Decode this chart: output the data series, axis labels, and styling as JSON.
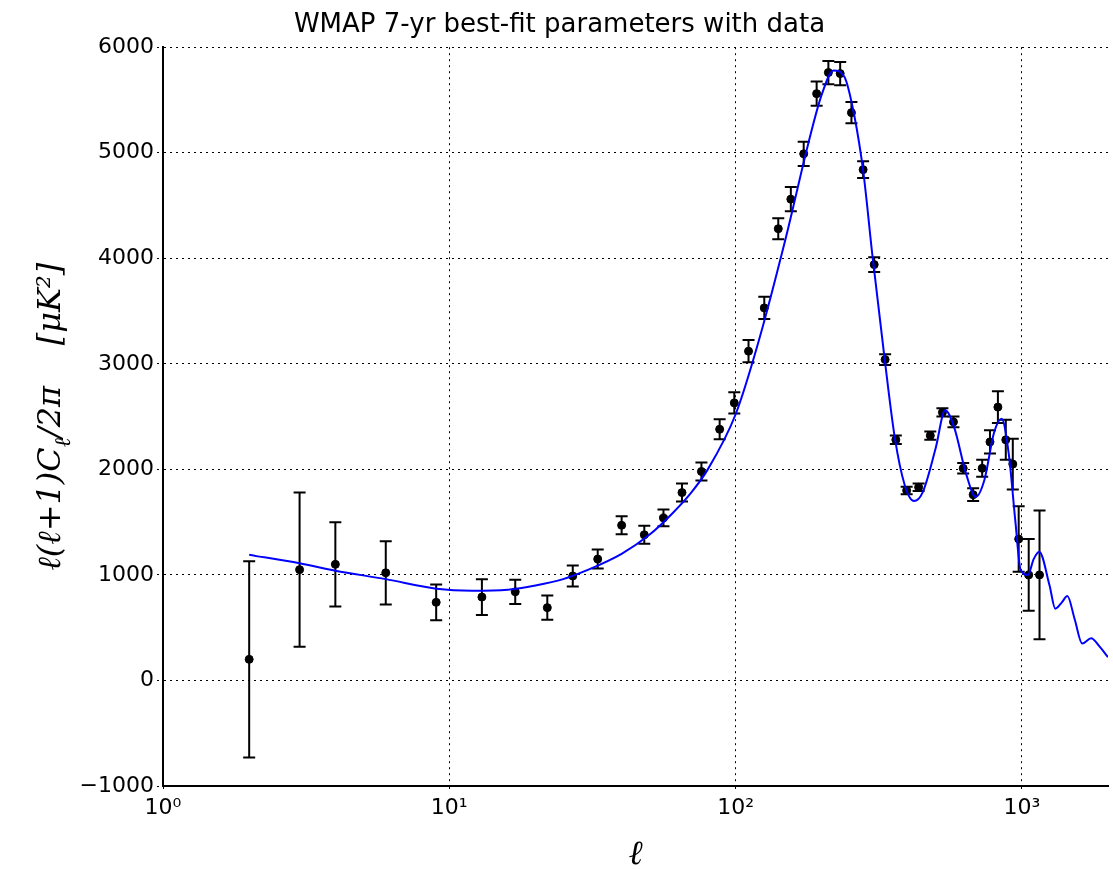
{
  "chart_data": {
    "type": "scatter",
    "title": "WMAP 7-yr best-fit parameters with data",
    "xlabel": "ℓ",
    "ylabel": "ℓ(ℓ+1)C$_{ℓ}$/2π    [μK²]",
    "log": "x",
    "grid": true,
    "legend": false,
    "xlim": [
      1,
      2000
    ],
    "xticks": [
      {
        "value": 1,
        "label": "10⁰"
      },
      {
        "value": 10,
        "label": "10¹"
      },
      {
        "value": 100,
        "label": "10²"
      },
      {
        "value": 1000,
        "label": "10³"
      }
    ],
    "ylim": [
      -1000,
      6000
    ],
    "yticks": [
      {
        "value": -1000,
        "label": "−1000"
      },
      0,
      1000,
      2000,
      3000,
      4000,
      5000,
      6000
    ],
    "series": [
      {
        "type": "line",
        "color": "#0000ff",
        "marker": "none",
        "line_style": "solid",
        "x": [
          2,
          3,
          4,
          6,
          9,
          12,
          16,
          20,
          25,
          30,
          40,
          50,
          60,
          70,
          80,
          100,
          120,
          150,
          180,
          200,
          220,
          240,
          260,
          280,
          300,
          330,
          360,
          390,
          420,
          450,
          500,
          540,
          580,
          640,
          690,
          740,
          800,
          850,
          900,
          950,
          990,
          1050,
          1100,
          1150,
          1250,
          1309,
          1380,
          1442,
          1530,
          1625,
          1746,
          1870,
          2000
        ],
        "values": [
          1190,
          1110,
          1040,
          960,
          870,
          850,
          860,
          900,
          960,
          1040,
          1200,
          1380,
          1580,
          1780,
          2000,
          2520,
          3200,
          4200,
          5100,
          5550,
          5780,
          5720,
          5350,
          4800,
          4050,
          3100,
          2300,
          1850,
          1700,
          1780,
          2200,
          2560,
          2400,
          1950,
          1740,
          1900,
          2350,
          2480,
          2150,
          1500,
          1050,
          1000,
          1150,
          1220,
          900,
          680,
          740,
          800,
          580,
          350,
          400,
          320,
          220
        ]
      },
      {
        "type": "scatter",
        "color": "#000000",
        "marker": "circle",
        "x": [
          2,
          3,
          4,
          6,
          9,
          13,
          17,
          22,
          27,
          33,
          40,
          48,
          56,
          65,
          76,
          88,
          99,
          111,
          126,
          141,
          156,
          173,
          192,
          211,
          232,
          254,
          279,
          305,
          333,
          363,
          396,
          436,
          479,
          528,
          577,
          624,
          676,
          727,
          774,
          825,
          879,
          930,
          975,
          1057,
          1153
        ],
        "values": [
          200,
          1050,
          1100,
          1020,
          740,
          790,
          840,
          690,
          990,
          1150,
          1470,
          1380,
          1540,
          1780,
          1980,
          2380,
          2630,
          3120,
          3530,
          4280,
          4560,
          4990,
          5560,
          5760,
          5750,
          5380,
          4840,
          3940,
          3040,
          2280,
          1800,
          1830,
          2320,
          2540,
          2450,
          2010,
          1760,
          2010,
          2260,
          2590,
          2280,
          2050,
          1340,
          1000,
          1000
        ],
        "errors": [
          930,
          730,
          400,
          300,
          170,
          170,
          115,
          115,
          100,
          90,
          85,
          85,
          80,
          85,
          85,
          95,
          100,
          105,
          105,
          100,
          115,
          115,
          115,
          110,
          110,
          100,
          80,
          70,
          50,
          40,
          35,
          35,
          40,
          40,
          50,
          50,
          60,
          80,
          110,
          150,
          190,
          240,
          310,
          340,
          610
        ]
      }
    ]
  }
}
